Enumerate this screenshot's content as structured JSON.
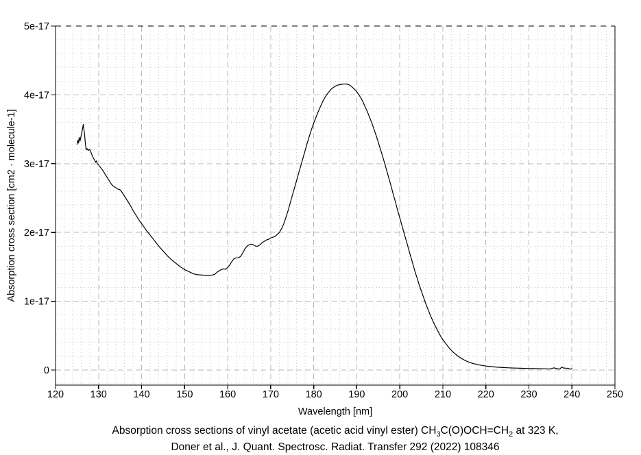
{
  "colors": {
    "background": "#ffffff",
    "curve": "#000000",
    "axis": "#000000",
    "grid_major": "#b8b8b8",
    "grid_minor": "#cccccc",
    "text": "#000000"
  },
  "axes": {
    "x": {
      "label": "Wavelength [nm]",
      "min": 120,
      "max": 250,
      "major_ticks": [
        120,
        130,
        140,
        150,
        160,
        170,
        180,
        190,
        200,
        210,
        220,
        230,
        240,
        250
      ],
      "tick_labels": [
        "120",
        "130",
        "140",
        "150",
        "160",
        "170",
        "180",
        "190",
        "200",
        "210",
        "220",
        "230",
        "240",
        "250"
      ],
      "minor_step": 2
    },
    "y": {
      "label": "Absorption cross section [cm2 · molecule-1]",
      "min": 0,
      "max": 5,
      "unit_scale": "1e-17",
      "major_ticks": [
        0,
        1,
        2,
        3,
        4,
        5
      ],
      "tick_labels": [
        "0",
        "1e-17",
        "2e-17",
        "3e-17",
        "4e-17",
        "5e-17"
      ],
      "minor_step": 0.2
    }
  },
  "caption": {
    "line1_pre": "Absorption cross sections of vinyl acetate (acetic acid vinyl ester) CH",
    "line1_sub1": "3",
    "line1_mid": "C(O)OCH=CH",
    "line1_sub2": "2",
    "line1_post": " at 323 K,",
    "line2": "Doner et al., J. Quant. Spectrosc. Radiat. Transfer 292 (2022) 108346"
  },
  "chart_data": {
    "type": "line",
    "title": "Absorption cross sections of vinyl acetate (acetic acid vinyl ester) CH3C(O)OCH=CH2 at 323 K, Doner et al., J. Quant. Spectrosc. Radiat. Transfer 292 (2022) 108346",
    "xlabel": "Wavelength [nm]",
    "ylabel": "Absorption cross section [cm2 · molecule-1]",
    "xlim": [
      120,
      250
    ],
    "ylim_1e17": [
      0,
      5
    ],
    "grid": true,
    "legend": "none",
    "series": [
      {
        "name": "vinyl acetate absorption cross section at 323 K",
        "x_nm": [
          125.0,
          125.2,
          125.35,
          125.5,
          125.7,
          126.0,
          126.2,
          126.45,
          126.6,
          126.75,
          126.9,
          127.1,
          127.3,
          127.6,
          127.9,
          128.2,
          128.5,
          128.8,
          129.1,
          129.3,
          129.5,
          129.7,
          130.0,
          130.5,
          131.0,
          131.5,
          132.0,
          132.5,
          133.0,
          133.5,
          134.0,
          134.5,
          135.0,
          135.5,
          136.0,
          136.5,
          137.0,
          137.5,
          138.0,
          138.5,
          139.0,
          139.5,
          140.0,
          141.0,
          142.0,
          143.0,
          144.0,
          145.0,
          146.0,
          147.0,
          148.0,
          149.0,
          150.0,
          151.0,
          152.0,
          153.0,
          154.0,
          155.0,
          156.0,
          157.0,
          157.5,
          158.0,
          158.5,
          159.0,
          159.5,
          160.0,
          160.5,
          161.0,
          161.5,
          162.0,
          162.5,
          163.0,
          163.5,
          164.0,
          164.5,
          165.0,
          165.5,
          166.0,
          166.5,
          167.0,
          167.5,
          168.0,
          168.5,
          169.0,
          169.5,
          170.0,
          170.5,
          171.0,
          171.5,
          172.0,
          172.5,
          173.0,
          173.5,
          174.0,
          174.5,
          175.0,
          175.5,
          176.0,
          176.5,
          177.0,
          177.5,
          178.0,
          178.5,
          179.0,
          179.5,
          180.0,
          180.5,
          181.0,
          181.5,
          182.0,
          182.5,
          183.0,
          183.5,
          184.0,
          184.5,
          185.0,
          185.5,
          186.0,
          186.5,
          187.0,
          187.5,
          188.0,
          188.5,
          189.0,
          189.5,
          190.0,
          190.5,
          191.0,
          191.5,
          192.0,
          192.5,
          193.0,
          193.5,
          194.0,
          194.5,
          195.0,
          195.5,
          196.0,
          196.5,
          197.0,
          197.5,
          198.0,
          198.5,
          199.0,
          199.5,
          200.0,
          200.5,
          201.0,
          201.5,
          202.0,
          202.5,
          203.0,
          203.5,
          204.0,
          204.5,
          205.0,
          205.5,
          206.0,
          206.5,
          207.0,
          207.5,
          208.0,
          208.5,
          209.0,
          209.5,
          210.0,
          210.5,
          211.0,
          211.5,
          212.0,
          212.5,
          213.0,
          213.5,
          214.0,
          214.5,
          215.0,
          215.5,
          216.0,
          216.5,
          217.0,
          217.5,
          218.0,
          219.0,
          220.0,
          221.0,
          222.0,
          223.0,
          224.0,
          225.0,
          226.0,
          227.0,
          228.0,
          229.0,
          230.0,
          231.0,
          232.0,
          233.0,
          234.0,
          235.0,
          235.8,
          236.5,
          237.2,
          237.6,
          238.0,
          238.6,
          239.2,
          239.6,
          240.0
        ],
        "sigma_1e17": [
          3.28,
          3.34,
          3.3,
          3.38,
          3.33,
          3.42,
          3.48,
          3.57,
          3.5,
          3.42,
          3.32,
          3.2,
          3.22,
          3.19,
          3.21,
          3.17,
          3.12,
          3.08,
          3.05,
          3.02,
          3.04,
          3.0,
          2.98,
          2.94,
          2.9,
          2.85,
          2.8,
          2.75,
          2.7,
          2.67,
          2.65,
          2.63,
          2.62,
          2.58,
          2.53,
          2.48,
          2.43,
          2.38,
          2.32,
          2.27,
          2.22,
          2.17,
          2.13,
          2.04,
          1.96,
          1.88,
          1.8,
          1.73,
          1.66,
          1.6,
          1.55,
          1.5,
          1.46,
          1.43,
          1.4,
          1.385,
          1.38,
          1.375,
          1.375,
          1.39,
          1.42,
          1.44,
          1.46,
          1.47,
          1.465,
          1.49,
          1.53,
          1.58,
          1.62,
          1.63,
          1.63,
          1.65,
          1.7,
          1.76,
          1.8,
          1.82,
          1.83,
          1.82,
          1.8,
          1.8,
          1.82,
          1.85,
          1.87,
          1.89,
          1.9,
          1.92,
          1.93,
          1.94,
          1.97,
          2.0,
          2.05,
          2.12,
          2.21,
          2.31,
          2.42,
          2.53,
          2.64,
          2.75,
          2.86,
          2.97,
          3.08,
          3.19,
          3.3,
          3.4,
          3.5,
          3.59,
          3.67,
          3.75,
          3.82,
          3.89,
          3.95,
          4.0,
          4.04,
          4.08,
          4.105,
          4.125,
          4.14,
          4.148,
          4.153,
          4.156,
          4.157,
          4.152,
          4.135,
          4.11,
          4.08,
          4.045,
          4.0,
          3.95,
          3.89,
          3.82,
          3.75,
          3.67,
          3.59,
          3.5,
          3.41,
          3.31,
          3.21,
          3.11,
          3.0,
          2.89,
          2.78,
          2.67,
          2.55,
          2.44,
          2.32,
          2.21,
          2.1,
          1.99,
          1.88,
          1.77,
          1.66,
          1.55,
          1.44,
          1.34,
          1.24,
          1.15,
          1.06,
          0.97,
          0.89,
          0.81,
          0.74,
          0.67,
          0.61,
          0.55,
          0.49,
          0.44,
          0.4,
          0.36,
          0.32,
          0.285,
          0.255,
          0.228,
          0.203,
          0.181,
          0.162,
          0.145,
          0.13,
          0.117,
          0.106,
          0.096,
          0.088,
          0.08,
          0.068,
          0.058,
          0.051,
          0.045,
          0.04,
          0.036,
          0.033,
          0.03,
          0.028,
          0.026,
          0.024,
          0.022,
          0.021,
          0.02,
          0.019,
          0.018,
          0.017,
          0.032,
          0.02,
          0.015,
          0.042,
          0.03,
          0.027,
          0.025,
          0.012,
          0.02
        ]
      }
    ]
  }
}
